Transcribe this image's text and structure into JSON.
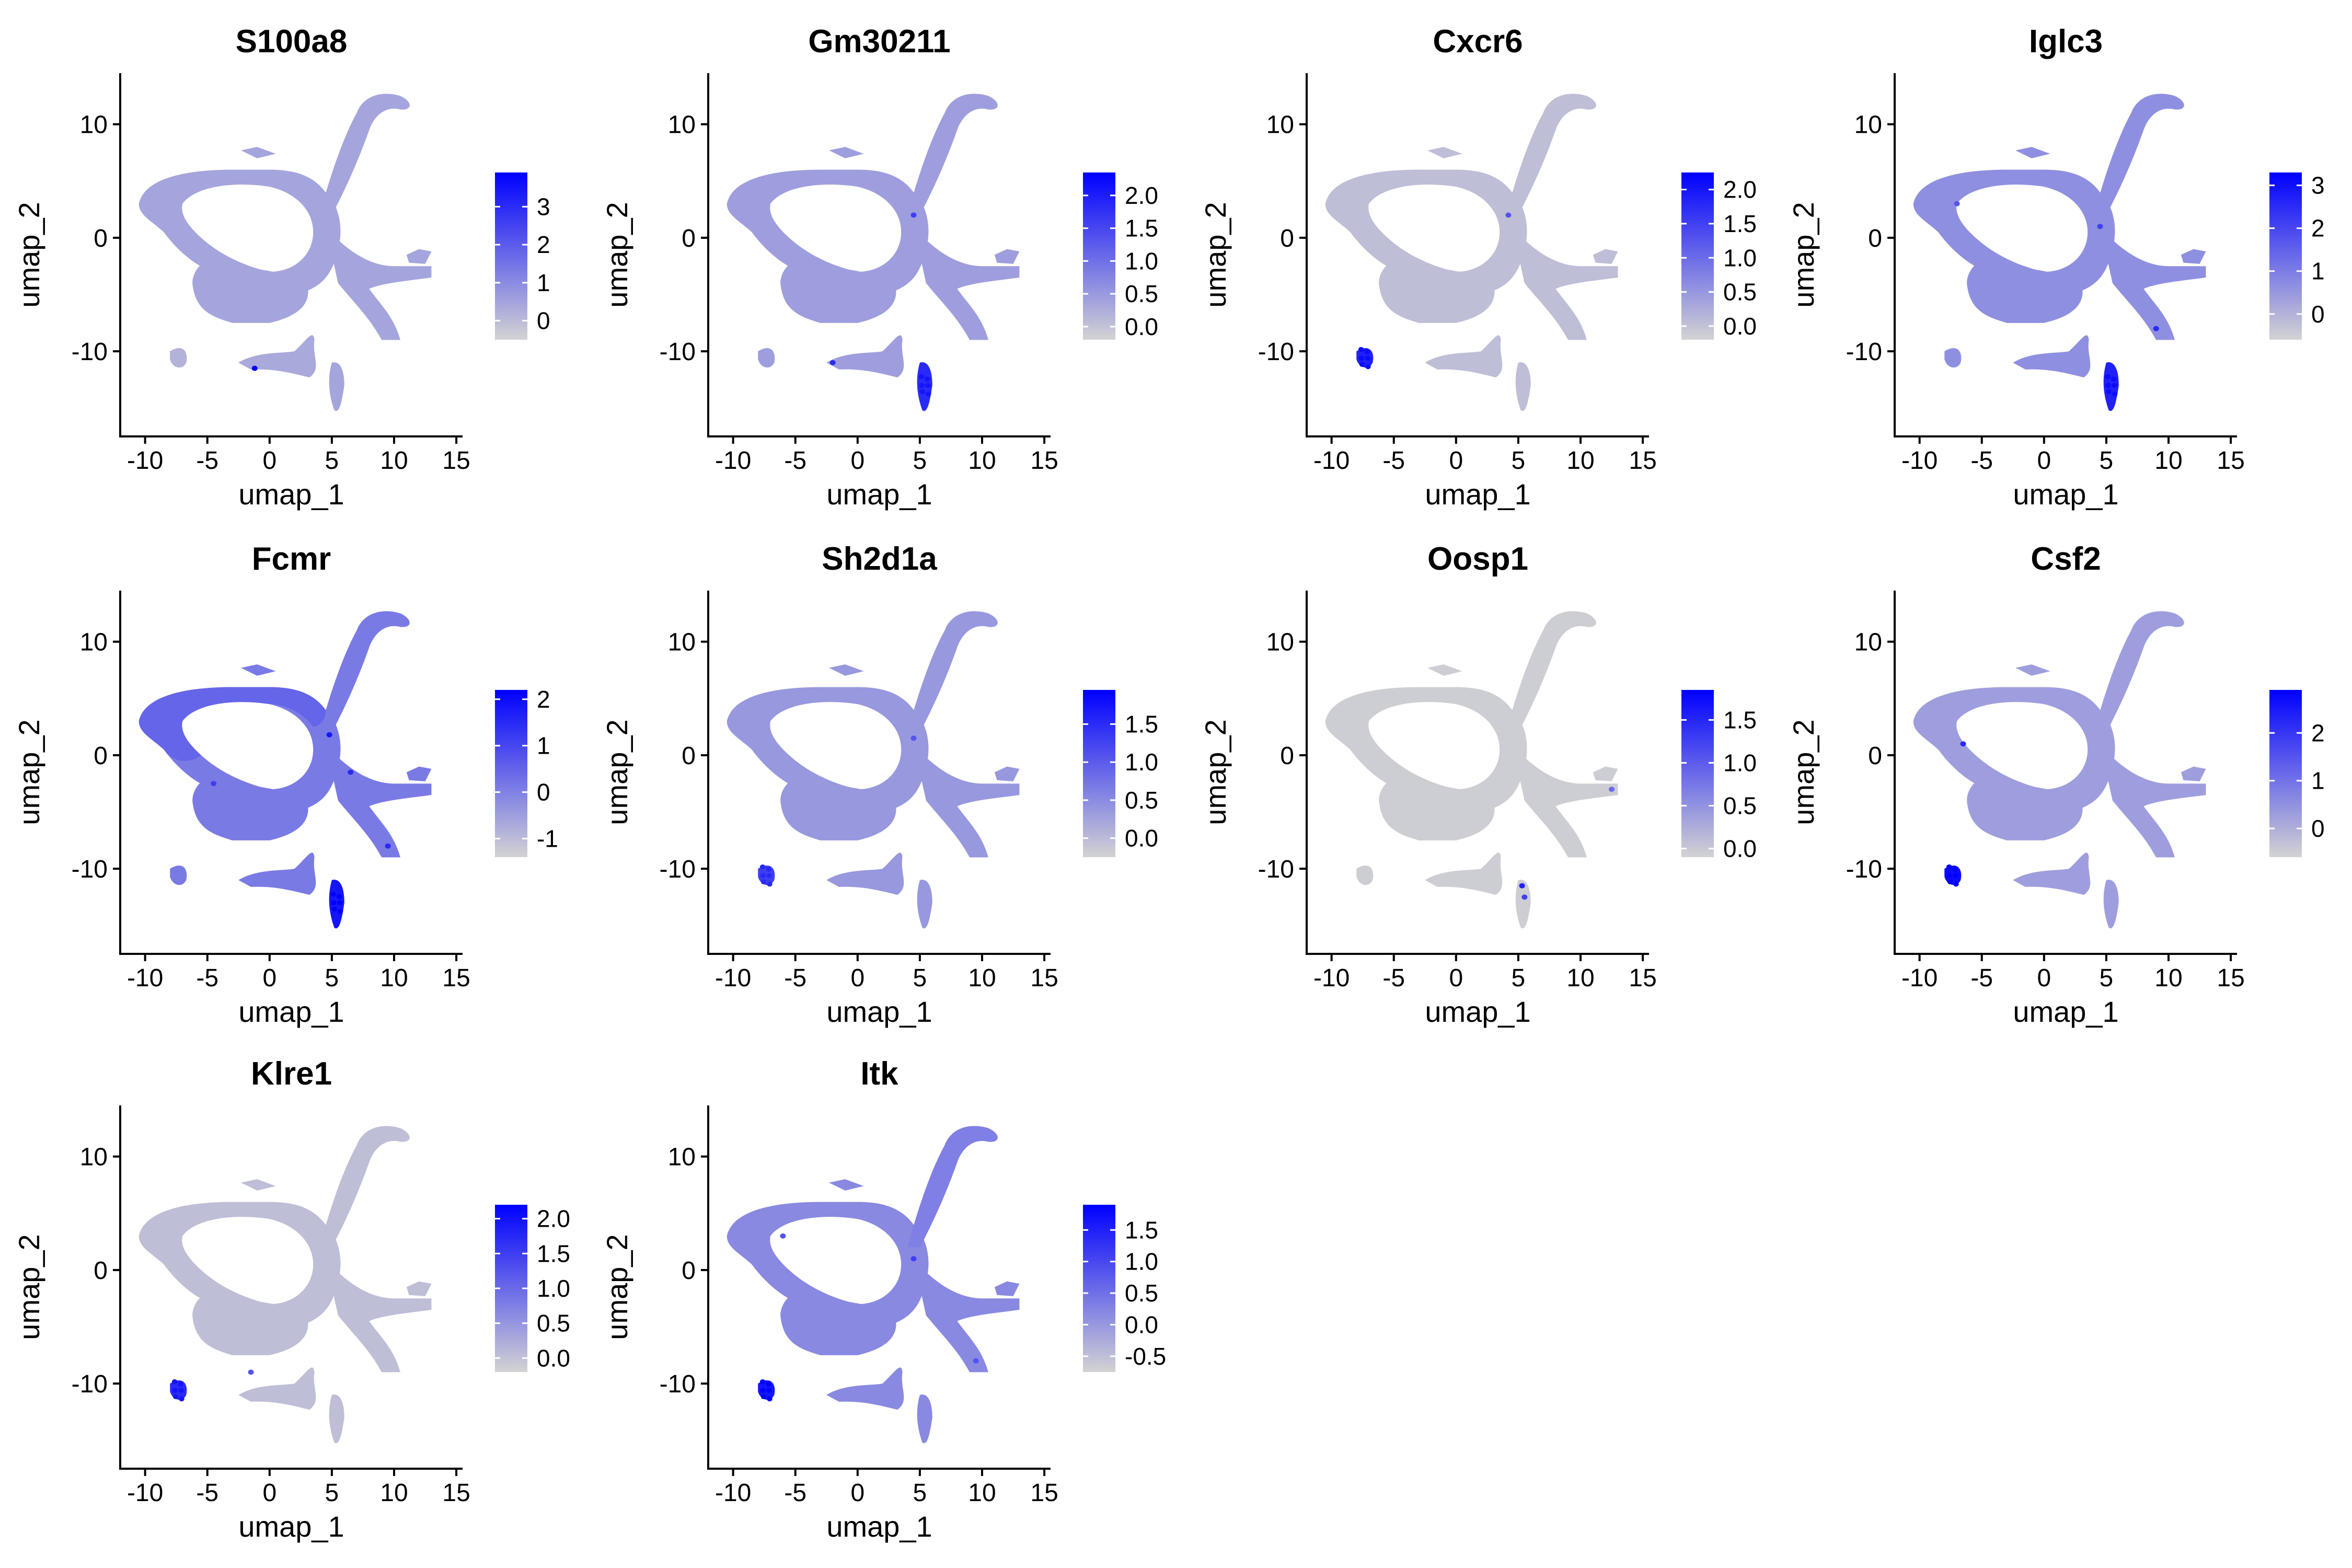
{
  "chart_data": [
    {
      "type": "scatter",
      "title": "S100a8",
      "xlabel": "umap_1",
      "ylabel": "umap_2",
      "xlim": [
        -12,
        15.5
      ],
      "ylim": [
        -17.5,
        14.5
      ],
      "xticks": [
        -10,
        -5,
        0,
        5,
        10,
        15
      ],
      "yticks": [
        10,
        0,
        -10
      ],
      "colorbar": {
        "min": -0.5,
        "max": 3.9,
        "ticks": [
          0,
          1,
          2,
          3
        ]
      },
      "base_level": 0.22,
      "hotspots": [
        {
          "cluster": "island_left",
          "level": 0.15
        },
        {
          "cluster": "island_mid",
          "level": 0.2
        }
      ],
      "spots": [
        [
          -1.2,
          -11.5,
          1.0
        ]
      ]
    },
    {
      "type": "scatter",
      "title": "Gm30211",
      "xlabel": "umap_1",
      "ylabel": "umap_2",
      "xlim": [
        -12,
        15.5
      ],
      "ylim": [
        -17.5,
        14.5
      ],
      "xticks": [
        -10,
        -5,
        0,
        5,
        10,
        15
      ],
      "yticks": [
        10,
        0,
        -10
      ],
      "colorbar": {
        "min": -0.2,
        "max": 2.35,
        "ticks": [
          0.0,
          0.5,
          1.0,
          1.5,
          2.0
        ]
      },
      "base_level": 0.25,
      "hotspots": [
        {
          "cluster": "island_bottom",
          "level": 0.8
        }
      ],
      "spots": [
        [
          -2.0,
          -11.0,
          0.8
        ],
        [
          4.5,
          2.0,
          0.7
        ]
      ]
    },
    {
      "type": "scatter",
      "title": "Cxcr6",
      "xlabel": "umap_1",
      "ylabel": "umap_2",
      "xlim": [
        -12,
        15.5
      ],
      "ylim": [
        -17.5,
        14.5
      ],
      "xticks": [
        -10,
        -5,
        0,
        5,
        10,
        15
      ],
      "yticks": [
        10,
        0,
        -10
      ],
      "colorbar": {
        "min": -0.2,
        "max": 2.25,
        "ticks": [
          0.0,
          0.5,
          1.0,
          1.5,
          2.0
        ]
      },
      "base_level": 0.1,
      "hotspots": [
        {
          "cluster": "island_left",
          "level": 0.85
        }
      ],
      "spots": [
        [
          4.2,
          2.0,
          0.6
        ]
      ]
    },
    {
      "type": "scatter",
      "title": "Iglc3",
      "xlabel": "umap_1",
      "ylabel": "umap_2",
      "xlim": [
        -12,
        15.5
      ],
      "ylim": [
        -17.5,
        14.5
      ],
      "xticks": [
        -10,
        -5,
        0,
        5,
        10,
        15
      ],
      "yticks": [
        10,
        0,
        -10
      ],
      "colorbar": {
        "min": -0.6,
        "max": 3.3,
        "ticks": [
          0,
          1,
          2,
          3
        ]
      },
      "base_level": 0.32,
      "hotspots": [
        {
          "cluster": "island_bottom",
          "level": 0.85
        }
      ],
      "spots": [
        [
          9.0,
          -8.0,
          0.8
        ],
        [
          4.5,
          1.0,
          0.7
        ],
        [
          -7.0,
          3.0,
          0.6
        ]
      ]
    },
    {
      "type": "scatter",
      "title": "Fcmr",
      "xlabel": "umap_1",
      "ylabel": "umap_2",
      "xlim": [
        -12,
        15.5
      ],
      "ylim": [
        -17.5,
        14.5
      ],
      "xticks": [
        -10,
        -5,
        0,
        5,
        10,
        15
      ],
      "yticks": [
        10,
        0,
        -10
      ],
      "colorbar": {
        "min": -1.4,
        "max": 2.2,
        "ticks": [
          -1,
          0,
          1,
          2
        ]
      },
      "base_level": 0.42,
      "hotspots": [
        {
          "cluster": "ring",
          "level": 0.52
        },
        {
          "cluster": "island_bottom",
          "level": 0.9
        }
      ],
      "spots": [
        [
          4.8,
          1.8,
          0.9
        ],
        [
          6.5,
          -1.5,
          0.8
        ],
        [
          -4.5,
          -2.5,
          0.7
        ],
        [
          9.5,
          -8.0,
          0.8
        ]
      ]
    },
    {
      "type": "scatter",
      "title": "Sh2d1a",
      "xlabel": "umap_1",
      "ylabel": "umap_2",
      "xlim": [
        -12,
        15.5
      ],
      "ylim": [
        -17.5,
        14.5
      ],
      "xticks": [
        -10,
        -5,
        0,
        5,
        10,
        15
      ],
      "yticks": [
        10,
        0,
        -10
      ],
      "colorbar": {
        "min": -0.25,
        "max": 1.95,
        "ticks": [
          0.0,
          0.5,
          1.0,
          1.5
        ]
      },
      "base_level": 0.28,
      "hotspots": [
        {
          "cluster": "island_left",
          "level": 0.7
        }
      ],
      "spots": [
        [
          4.5,
          1.5,
          0.6
        ]
      ]
    },
    {
      "type": "scatter",
      "title": "Oosp1",
      "xlabel": "umap_1",
      "ylabel": "umap_2",
      "xlim": [
        -12,
        15.5
      ],
      "ylim": [
        -17.5,
        14.5
      ],
      "xticks": [
        -10,
        -5,
        0,
        5,
        10,
        15
      ],
      "yticks": [
        10,
        0,
        -10
      ],
      "colorbar": {
        "min": -0.1,
        "max": 1.85,
        "ticks": [
          0.0,
          0.5,
          1.0,
          1.5
        ]
      },
      "base_level": 0.03,
      "hotspots": [],
      "spots": [
        [
          5.3,
          -11.5,
          0.85
        ],
        [
          5.5,
          -12.5,
          0.7
        ],
        [
          12.5,
          -3.0,
          0.5
        ]
      ]
    },
    {
      "type": "scatter",
      "title": "Csf2",
      "xlabel": "umap_1",
      "ylabel": "umap_2",
      "xlim": [
        -12,
        15.5
      ],
      "ylim": [
        -17.5,
        14.5
      ],
      "xticks": [
        -10,
        -5,
        0,
        5,
        10,
        15
      ],
      "yticks": [
        10,
        0,
        -10
      ],
      "colorbar": {
        "min": -0.6,
        "max": 2.9,
        "ticks": [
          0,
          1,
          2
        ]
      },
      "base_level": 0.25,
      "hotspots": [
        {
          "cluster": "island_left",
          "level": 0.95
        }
      ],
      "spots": [
        [
          -6.5,
          1.0,
          0.8
        ]
      ]
    },
    {
      "type": "scatter",
      "title": "Klre1",
      "xlabel": "umap_1",
      "ylabel": "umap_2",
      "xlim": [
        -12,
        15.5
      ],
      "ylim": [
        -17.5,
        14.5
      ],
      "xticks": [
        -10,
        -5,
        0,
        5,
        10,
        15
      ],
      "yticks": [
        10,
        0,
        -10
      ],
      "colorbar": {
        "min": -0.2,
        "max": 2.2,
        "ticks": [
          0.0,
          0.5,
          1.0,
          1.5,
          2.0
        ]
      },
      "base_level": 0.1,
      "hotspots": [
        {
          "cluster": "island_left",
          "level": 0.8
        }
      ],
      "spots": [
        [
          -1.5,
          -9.0,
          0.6
        ]
      ]
    },
    {
      "type": "scatter",
      "title": "Itk",
      "xlabel": "umap_1",
      "ylabel": "umap_2",
      "xlim": [
        -12,
        15.5
      ],
      "ylim": [
        -17.5,
        14.5
      ],
      "xticks": [
        -10,
        -5,
        0,
        5,
        10,
        15
      ],
      "yticks": [
        10,
        0,
        -10
      ],
      "colorbar": {
        "min": -0.75,
        "max": 1.9,
        "ticks": [
          -0.5,
          0.0,
          0.5,
          1.0,
          1.5
        ]
      },
      "base_level": 0.35,
      "hotspots": [
        {
          "cluster": "island_left",
          "level": 0.9
        },
        {
          "cluster": "tail",
          "level": 0.4
        }
      ],
      "spots": [
        [
          4.5,
          1.0,
          0.7
        ],
        [
          -6.0,
          3.0,
          0.6
        ],
        [
          9.5,
          -8.0,
          0.6
        ]
      ]
    }
  ]
}
